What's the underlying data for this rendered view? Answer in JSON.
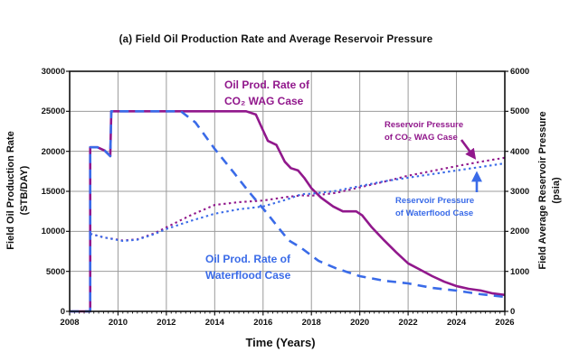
{
  "title": "(a) Field Oil Production Rate and Average Reservoir Pressure",
  "x_axis": {
    "label": "Time (Years)",
    "ticks": [
      "2008",
      "2010",
      "2012",
      "2014",
      "2016",
      "2018",
      "2020",
      "2022",
      "2024",
      "2026"
    ]
  },
  "y_left": {
    "label_line1": "Field Oil Production Rate",
    "label_line2": "(STB/DAY)",
    "ticks": [
      "30000",
      "25000",
      "20000",
      "15000",
      "10000",
      "5000",
      "0"
    ]
  },
  "y_right": {
    "label_line1": "Field Average Reservoir Pressure",
    "label_line2": "(psia)",
    "ticks": [
      "6000",
      "5000",
      "4000",
      "3000",
      "2000",
      "1000",
      "0"
    ]
  },
  "annotations": {
    "co2_rate": {
      "line1": "Oil Prod. Rate of",
      "line2": "CO₂ WAG Case"
    },
    "wf_rate": {
      "line1": "Oil Prod. Rate of",
      "line2": "Waterflood Case"
    },
    "co2_pressure": {
      "line1": "Reservoir Pressure",
      "line2": "of CO₂ WAG Case"
    },
    "wf_pressure": {
      "line1": "Reservoir Pressure",
      "line2": "of Waterflood Case"
    }
  },
  "colors": {
    "co2": "#91188C",
    "waterflood": "#3A6BE8",
    "grid": "#9B9B9B",
    "axis": "#111111"
  },
  "chart_data": {
    "type": "line",
    "title": "(a) Field Oil Production Rate and Average Reservoir Pressure",
    "xlabel": "Time (Years)",
    "ylabel_left": "Field Oil Production Rate (STB/DAY)",
    "ylabel_right": "Field Average Reservoir Pressure (psia)",
    "x_range": [
      2008,
      2026
    ],
    "y_left_range": [
      0,
      30000
    ],
    "y_right_range": [
      0,
      6000
    ],
    "grid": true,
    "series": [
      {
        "name": "Oil Prod. Rate of CO₂ WAG Case",
        "axis": "left",
        "style": "solid",
        "color_key": "co2",
        "points": [
          [
            2008.0,
            0
          ],
          [
            2008.85,
            0
          ],
          [
            2008.85,
            20500
          ],
          [
            2009.15,
            20500
          ],
          [
            2009.45,
            20100
          ],
          [
            2009.68,
            19400
          ],
          [
            2009.72,
            25000
          ],
          [
            2015.3,
            25000
          ],
          [
            2015.7,
            24600
          ],
          [
            2016.0,
            22600
          ],
          [
            2016.2,
            21300
          ],
          [
            2016.55,
            20800
          ],
          [
            2016.9,
            18700
          ],
          [
            2017.15,
            17900
          ],
          [
            2017.45,
            17600
          ],
          [
            2017.7,
            16700
          ],
          [
            2018.0,
            15400
          ],
          [
            2018.4,
            14200
          ],
          [
            2018.9,
            13100
          ],
          [
            2019.3,
            12500
          ],
          [
            2019.85,
            12500
          ],
          [
            2020.1,
            12000
          ],
          [
            2020.5,
            10500
          ],
          [
            2021.0,
            8900
          ],
          [
            2021.5,
            7400
          ],
          [
            2022.0,
            6000
          ],
          [
            2022.5,
            5200
          ],
          [
            2023.0,
            4400
          ],
          [
            2023.5,
            3700
          ],
          [
            2024.0,
            3160
          ],
          [
            2024.5,
            2820
          ],
          [
            2025.0,
            2600
          ],
          [
            2025.5,
            2250
          ],
          [
            2026.0,
            2050
          ]
        ]
      },
      {
        "name": "Oil Prod. Rate of Waterflood Case",
        "axis": "left",
        "style": "dash",
        "color_key": "waterflood",
        "points": [
          [
            2008.0,
            0
          ],
          [
            2008.85,
            0
          ],
          [
            2008.85,
            20500
          ],
          [
            2009.15,
            20500
          ],
          [
            2009.45,
            20100
          ],
          [
            2009.68,
            19400
          ],
          [
            2009.72,
            25000
          ],
          [
            2012.6,
            25000
          ],
          [
            2013.2,
            23600
          ],
          [
            2014.0,
            20300
          ],
          [
            2014.8,
            17300
          ],
          [
            2015.4,
            15000
          ],
          [
            2016.15,
            12300
          ],
          [
            2017.05,
            8900
          ],
          [
            2017.55,
            8000
          ],
          [
            2018.3,
            6300
          ],
          [
            2019.0,
            5400
          ],
          [
            2020.0,
            4400
          ],
          [
            2021.0,
            3830
          ],
          [
            2022.0,
            3500
          ],
          [
            2023.0,
            2930
          ],
          [
            2024.0,
            2590
          ],
          [
            2025.0,
            2140
          ],
          [
            2026.0,
            1800
          ]
        ]
      },
      {
        "name": "Reservoir Pressure of CO₂ WAG Case",
        "axis": "right",
        "style": "dot",
        "color_key": "co2",
        "points": [
          [
            2008.85,
            1940
          ],
          [
            2009.4,
            1850
          ],
          [
            2010.2,
            1770
          ],
          [
            2010.8,
            1800
          ],
          [
            2011.5,
            1950
          ],
          [
            2012.0,
            2100
          ],
          [
            2013.0,
            2400
          ],
          [
            2014.0,
            2660
          ],
          [
            2015.0,
            2730
          ],
          [
            2016.0,
            2770
          ],
          [
            2017.0,
            2860
          ],
          [
            2017.6,
            2900
          ],
          [
            2018.0,
            2890
          ],
          [
            2019.0,
            2960
          ],
          [
            2020.0,
            3100
          ],
          [
            2021.0,
            3240
          ],
          [
            2022.0,
            3390
          ],
          [
            2023.0,
            3510
          ],
          [
            2024.0,
            3630
          ],
          [
            2025.0,
            3740
          ],
          [
            2026.0,
            3840
          ]
        ]
      },
      {
        "name": "Reservoir Pressure of Waterflood Case",
        "axis": "right",
        "style": "dot",
        "color_key": "waterflood",
        "points": [
          [
            2008.85,
            1940
          ],
          [
            2009.4,
            1850
          ],
          [
            2010.2,
            1760
          ],
          [
            2010.8,
            1790
          ],
          [
            2011.5,
            1930
          ],
          [
            2012.0,
            2060
          ],
          [
            2013.0,
            2260
          ],
          [
            2014.0,
            2440
          ],
          [
            2015.0,
            2550
          ],
          [
            2016.0,
            2620
          ],
          [
            2017.0,
            2800
          ],
          [
            2017.6,
            2930
          ],
          [
            2018.0,
            2940
          ],
          [
            2019.0,
            3010
          ],
          [
            2020.0,
            3130
          ],
          [
            2021.0,
            3250
          ],
          [
            2022.0,
            3340
          ],
          [
            2023.0,
            3430
          ],
          [
            2024.0,
            3520
          ],
          [
            2025.0,
            3610
          ],
          [
            2026.0,
            3700
          ]
        ]
      }
    ]
  }
}
